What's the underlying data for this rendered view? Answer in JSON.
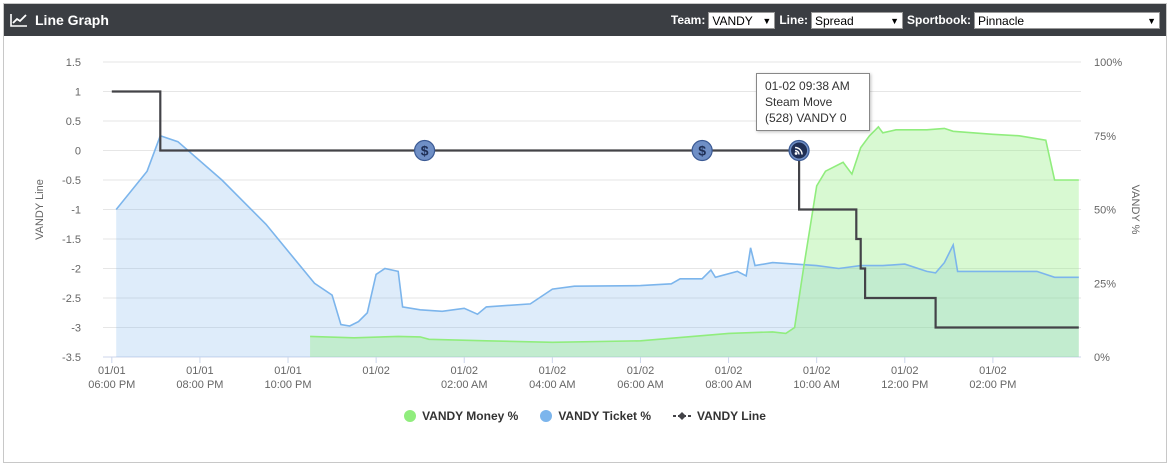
{
  "header": {
    "title": "Line Graph",
    "team_label": "Team:",
    "team_value": "VANDY",
    "line_label": "Line:",
    "line_value": "Spread",
    "sportbook_label": "Sportbook:",
    "sportbook_value": "Pinnacle"
  },
  "tooltip": {
    "line1": "01-02 09:38 AM",
    "line2": "Steam Move",
    "line3": "(528) VANDY 0"
  },
  "chart_data": {
    "type": "line",
    "left_axis": {
      "label": "VANDY Line",
      "range": [
        -3.5,
        1.5
      ],
      "ticks": [
        "1.5",
        "1",
        "0.5",
        "0",
        "-0.5",
        "-1",
        "-1.5",
        "-2",
        "-2.5",
        "-3",
        "-3.5"
      ]
    },
    "right_axis": {
      "label": "VANDY %",
      "range": [
        0,
        100
      ],
      "ticks": [
        "100%",
        "75%",
        "50%",
        "25%",
        "0%"
      ]
    },
    "x_ticks": [
      {
        "d": "01/01",
        "t": "06:00 PM",
        "h": 18
      },
      {
        "d": "01/01",
        "t": "08:00 PM",
        "h": 20
      },
      {
        "d": "01/01",
        "t": "10:00 PM",
        "h": 22
      },
      {
        "d": "01/02",
        "t": "",
        "h": 24
      },
      {
        "d": "01/02",
        "t": "02:00 AM",
        "h": 26
      },
      {
        "d": "01/02",
        "t": "04:00 AM",
        "h": 28
      },
      {
        "d": "01/02",
        "t": "06:00 AM",
        "h": 30
      },
      {
        "d": "01/02",
        "t": "08:00 AM",
        "h": 32
      },
      {
        "d": "01/02",
        "t": "10:00 AM",
        "h": 34
      },
      {
        "d": "01/02",
        "t": "12:00 PM",
        "h": 36
      },
      {
        "d": "01/02",
        "t": "02:00 PM",
        "h": 38
      }
    ],
    "legend_position": "bottom",
    "grid": true,
    "series": [
      {
        "name": "VANDY Money %",
        "color": "#90ed7d",
        "axis": "right",
        "points": [
          [
            22.5,
            7
          ],
          [
            23.5,
            6.5
          ],
          [
            24.5,
            7
          ],
          [
            25,
            6.8
          ],
          [
            25.2,
            6
          ],
          [
            26.5,
            5.5
          ],
          [
            28,
            5
          ],
          [
            30,
            5.5
          ],
          [
            32,
            8
          ],
          [
            33,
            8.5
          ],
          [
            33.3,
            8
          ],
          [
            33.5,
            10
          ],
          [
            33.7,
            30
          ],
          [
            34,
            58
          ],
          [
            34.2,
            63
          ],
          [
            34.6,
            66
          ],
          [
            34.8,
            62
          ],
          [
            35,
            71
          ],
          [
            35.2,
            75
          ],
          [
            35.4,
            78
          ],
          [
            35.5,
            76
          ],
          [
            35.8,
            77
          ],
          [
            36.5,
            77
          ],
          [
            36.9,
            77.5
          ],
          [
            37.1,
            76.5
          ],
          [
            38,
            75.5
          ],
          [
            38.6,
            75
          ],
          [
            39.2,
            73.5
          ],
          [
            39.4,
            60
          ],
          [
            39.6,
            60
          ],
          [
            39.95,
            60
          ]
        ]
      },
      {
        "name": "VANDY Ticket %",
        "color": "#7cb5ec",
        "axis": "right",
        "points": [
          [
            18.1,
            50
          ],
          [
            18.8,
            63
          ],
          [
            19.1,
            75
          ],
          [
            19.5,
            73
          ],
          [
            20.5,
            60
          ],
          [
            21.5,
            45
          ],
          [
            22.6,
            25
          ],
          [
            23,
            21
          ],
          [
            23.2,
            11
          ],
          [
            23.4,
            10.5
          ],
          [
            23.6,
            12
          ],
          [
            23.8,
            15
          ],
          [
            24,
            28
          ],
          [
            24.2,
            30
          ],
          [
            24.5,
            29
          ],
          [
            24.6,
            17
          ],
          [
            25,
            16
          ],
          [
            25.5,
            15.5
          ],
          [
            26,
            16.5
          ],
          [
            26.3,
            14.5
          ],
          [
            26.5,
            17
          ],
          [
            27.5,
            18
          ],
          [
            28,
            23
          ],
          [
            28.5,
            24
          ],
          [
            30,
            24.2
          ],
          [
            30.7,
            24.8
          ],
          [
            30.9,
            26.5
          ],
          [
            31.4,
            26.5
          ],
          [
            31.6,
            29.5
          ],
          [
            31.7,
            27
          ],
          [
            32.2,
            29
          ],
          [
            32.4,
            27.5
          ],
          [
            32.5,
            37
          ],
          [
            32.6,
            31
          ],
          [
            33,
            32
          ],
          [
            33.5,
            31.5
          ],
          [
            34,
            31
          ],
          [
            34.5,
            30
          ],
          [
            35,
            31
          ],
          [
            35.5,
            31
          ],
          [
            36,
            31.5
          ],
          [
            36.5,
            29
          ],
          [
            36.7,
            28.5
          ],
          [
            36.9,
            32
          ],
          [
            37.1,
            38
          ],
          [
            37.2,
            29
          ],
          [
            37.5,
            29
          ],
          [
            38,
            29
          ],
          [
            38.5,
            29
          ],
          [
            39,
            29
          ],
          [
            39.4,
            27
          ],
          [
            39.95,
            27
          ]
        ]
      },
      {
        "name": "VANDY Line",
        "color": "#434348",
        "axis": "left",
        "points": [
          [
            18,
            1
          ],
          [
            19.1,
            1
          ],
          [
            19.1,
            0
          ],
          [
            33.6,
            0
          ],
          [
            33.6,
            -1
          ],
          [
            34.9,
            -1
          ],
          [
            34.9,
            -1.5
          ],
          [
            35,
            -1.5
          ],
          [
            35,
            -2
          ],
          [
            35.1,
            -2
          ],
          [
            35.1,
            -2.5
          ],
          [
            36.7,
            -2.5
          ],
          [
            36.7,
            -3
          ],
          [
            39.95,
            -3
          ]
        ]
      }
    ],
    "annotations": [
      {
        "x": 25.1,
        "y": 0,
        "type": "dollar-marker"
      },
      {
        "x": 31.4,
        "y": 0,
        "type": "dollar-marker"
      },
      {
        "x": 33.6,
        "y": 0,
        "type": "steam-marker"
      }
    ]
  }
}
